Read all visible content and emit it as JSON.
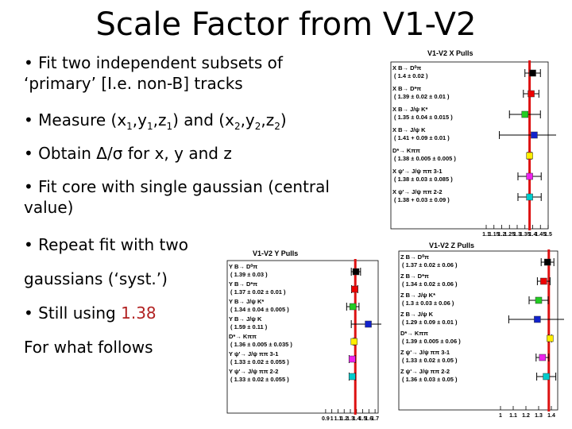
{
  "slide": {
    "title": "Scale Factor from V1-V2",
    "bullets": {
      "b1_line1": "• Fit two independent subsets of",
      "b1_line2": "‘primary’ [I.e. non-B] tracks",
      "b2_pre": "• Measure (x",
      "b2_s1": "1",
      "b2_m1": ",y",
      "b2_s2": "1",
      "b2_m2": ",z",
      "b2_s3": "1",
      "b2_m3": ") and (x",
      "b2_s4": "2",
      "b2_m4": ",y",
      "b2_s5": "2",
      "b2_m5": ",z",
      "b2_s6": "2",
      "b2_end": ")",
      "b3": "• Obtain Δ/σ for x, y and z",
      "b4_line1": "• Fit core with single gaussian (central",
      "b4_line2": "value)",
      "b5": "• Repeat fit with two",
      "b6": "gaussians (‘syst.’)",
      "b7_pre": "• Still using ",
      "b7_value": "1.38",
      "b8": "For what follows"
    },
    "colors": {
      "accent": "#b22222",
      "line": "#dd1111"
    }
  },
  "chart_data": [
    {
      "type": "scatter",
      "title": "V1-V2 X Pulls",
      "xlim": [
        1.1,
        1.5
      ],
      "ticks": [
        "1.1",
        "1.15",
        "1.2",
        "1.25",
        "1.3",
        "1.35",
        "1.4",
        "1.45",
        "1.5"
      ],
      "reference_line": 1.38,
      "points": [
        {
          "label": "X B→ D⁰π",
          "sub": "( 1.4 ± 0.02 )",
          "x": 1.4,
          "err": 0.02,
          "color": "#000000"
        },
        {
          "label": "X B→ D*π",
          "sub": "( 1.39 ± 0.02 ± 0.01 )",
          "x": 1.39,
          "err": 0.02,
          "color": "#ee0000"
        },
        {
          "label": "X B→ J/ψ K*",
          "sub": "( 1.35 ± 0.04 ± 0.015 )",
          "x": 1.35,
          "err": 0.04,
          "color": "#22cc22"
        },
        {
          "label": "X B→ J/ψ K",
          "sub": "( 1.41 + 0.09 ± 0.01 )",
          "x": 1.41,
          "err": 0.09,
          "color": "#1122cc"
        },
        {
          "label": "D*→ Kππ",
          "sub": "( 1.38 ± 0.005 ± 0.005 )",
          "x": 1.38,
          "err": 0.005,
          "color": "#ffee00"
        },
        {
          "label": "X ψ'→ J/ψ ππ 3-1",
          "sub": "( 1.38 ± 0.03 ± 0.085 )",
          "x": 1.38,
          "err": 0.03,
          "color": "#ee22ee"
        },
        {
          "label": "X ψ'→ J/ψ ππ 2-2",
          "sub": "( 1.38 + 0.03 ± 0.09 )",
          "x": 1.38,
          "err": 0.03,
          "color": "#00cccc"
        }
      ]
    },
    {
      "type": "scatter",
      "title": "V1-V2 Y Pulls",
      "xlim": [
        0.85,
        1.75
      ],
      "ticks": [
        "0.9",
        "1",
        "1.1",
        "1.2",
        "1.3",
        "1.4",
        "1.5",
        "1.6",
        "1.7"
      ],
      "reference_line": 1.38,
      "points": [
        {
          "label": "Y B→ D⁰π",
          "sub": "( 1.39 ± 0.03 )",
          "x": 1.39,
          "err": 0.03,
          "color": "#000000"
        },
        {
          "label": "Y B→ D*π",
          "sub": "( 1.37 ± 0.02 ± 0.01 )",
          "x": 1.37,
          "err": 0.02,
          "color": "#ee0000"
        },
        {
          "label": "Y B→ J/ψ K*",
          "sub": "( 1.34 ± 0.04 ± 0.005 )",
          "x": 1.34,
          "err": 0.04,
          "color": "#22cc22"
        },
        {
          "label": "Y B→ J/ψ K",
          "sub": "( 1.59 ± 0.11 )",
          "x": 1.59,
          "err": 0.11,
          "color": "#1122cc"
        },
        {
          "label": "D*→ Kππ",
          "sub": "( 1.36 ± 0.005 ± 0.035 )",
          "x": 1.36,
          "err": 0.005,
          "color": "#ffee00"
        },
        {
          "label": "Y ψ'→ J/ψ ππ 3-1",
          "sub": "( 1.33 ± 0.02 ± 0.055 )",
          "x": 1.33,
          "err": 0.02,
          "color": "#ee22ee"
        },
        {
          "label": "Y ψ'→ J/ψ ππ 2-2",
          "sub": "( 1.33 ± 0.02 ± 0.055 )",
          "x": 1.33,
          "err": 0.02,
          "color": "#00cccc"
        }
      ]
    },
    {
      "type": "scatter",
      "title": "V1-V2 Z Pulls",
      "xlim": [
        0.95,
        1.45
      ],
      "ticks": [
        "1",
        "1.1",
        "1.2",
        "1.3",
        "1.4"
      ],
      "reference_line": 1.38,
      "points": [
        {
          "label": "Z B→ D⁰π",
          "sub": "( 1.37 ± 0.02 ± 0.06 )",
          "x": 1.37,
          "err": 0.02,
          "color": "#000000"
        },
        {
          "label": "Z B→ D*π",
          "sub": "( 1.34 ± 0.02 ± 0.06 )",
          "x": 1.34,
          "err": 0.02,
          "color": "#ee0000"
        },
        {
          "label": "Z B→ J/ψ K*",
          "sub": "( 1.3 ± 0.03 ± 0.06 )",
          "x": 1.3,
          "err": 0.03,
          "color": "#22cc22"
        },
        {
          "label": "Z B→ J/ψ K",
          "sub": "( 1.29 ± 0.09 ± 0.01 )",
          "x": 1.29,
          "err": 0.09,
          "color": "#1122cc"
        },
        {
          "label": "D*→ Kππ",
          "sub": "( 1.39 ± 0.005 ± 0.06 )",
          "x": 1.39,
          "err": 0.005,
          "color": "#ffee00"
        },
        {
          "label": "Z ψ'→ J/ψ ππ 3-1",
          "sub": "( 1.33 ± 0.02 ± 0.05 )",
          "x": 1.33,
          "err": 0.02,
          "color": "#ee22ee"
        },
        {
          "label": "Z ψ'→ J/ψ ππ 2-2",
          "sub": "( 1.36 ± 0.03 ± 0.05 )",
          "x": 1.36,
          "err": 0.03,
          "color": "#00cccc"
        }
      ]
    }
  ]
}
